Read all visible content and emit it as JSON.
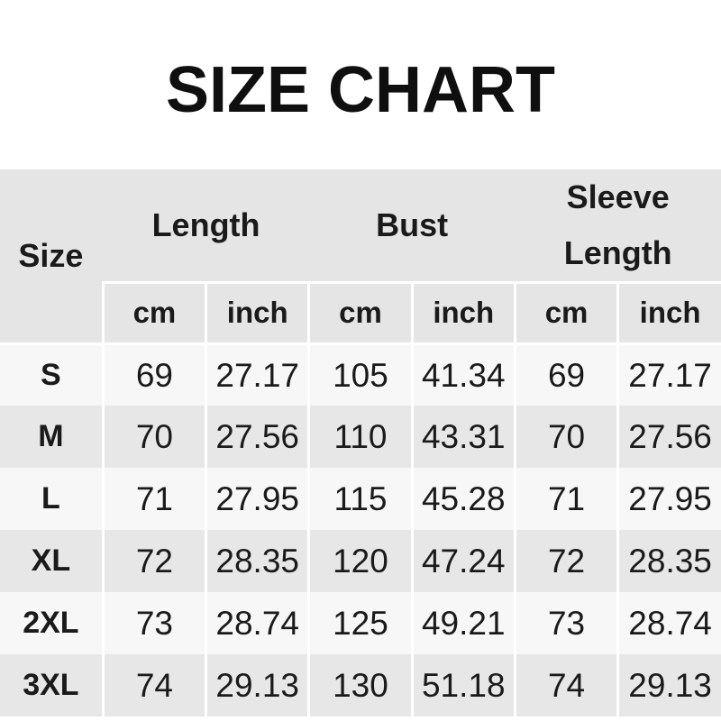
{
  "title": "SIZE CHART",
  "colors": {
    "header_bg": "#e5e5e5",
    "row_light": "#f7f7f7",
    "row_dark": "#e7e7e7",
    "separator": "#ffffff",
    "text": "#1a1a1a",
    "page_bg": "#ffffff"
  },
  "chart_data": {
    "type": "table",
    "title": "SIZE CHART",
    "header": {
      "size_label": "Size",
      "groups": [
        {
          "label": "Length"
        },
        {
          "label": "Bust"
        },
        {
          "label": "Sleeve Length"
        }
      ],
      "units": [
        "cm",
        "inch",
        "cm",
        "inch",
        "cm",
        "inch"
      ]
    },
    "rows": [
      {
        "size": "S",
        "values": [
          "69",
          "27.17",
          "105",
          "41.34",
          "69",
          "27.17"
        ]
      },
      {
        "size": "M",
        "values": [
          "70",
          "27.56",
          "110",
          "43.31",
          "70",
          "27.56"
        ]
      },
      {
        "size": "L",
        "values": [
          "71",
          "27.95",
          "115",
          "45.28",
          "71",
          "27.95"
        ]
      },
      {
        "size": "XL",
        "values": [
          "72",
          "28.35",
          "120",
          "47.24",
          "72",
          "28.35"
        ]
      },
      {
        "size": "2XL",
        "values": [
          "73",
          "28.74",
          "125",
          "49.21",
          "73",
          "28.74"
        ]
      },
      {
        "size": "3XL",
        "values": [
          "74",
          "29.13",
          "130",
          "51.18",
          "74",
          "29.13"
        ]
      }
    ]
  }
}
